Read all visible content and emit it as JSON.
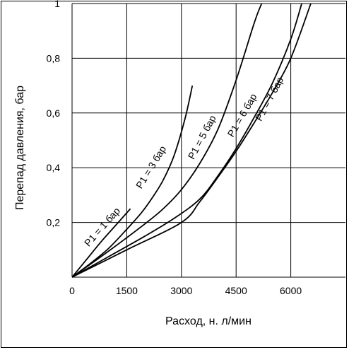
{
  "chart_data": {
    "type": "line",
    "title": "",
    "xlabel": "Расход, н. л/мин",
    "ylabel": "Перепад давления, бар",
    "xlim": [
      0,
      7500
    ],
    "ylim": [
      0,
      1
    ],
    "grid": true,
    "legend": "none",
    "x_ticks": [
      {
        "value": 0,
        "label": "0"
      },
      {
        "value": 1500,
        "label": "1500"
      },
      {
        "value": 3000,
        "label": "3000"
      },
      {
        "value": 4500,
        "label": "4500"
      },
      {
        "value": 6000,
        "label": "6000"
      }
    ],
    "y_ticks": [
      {
        "value": 0.2,
        "label": "0,2"
      },
      {
        "value": 0.4,
        "label": "0,4"
      },
      {
        "value": 0.6,
        "label": "0,6"
      },
      {
        "value": 0.8,
        "label": "0,8"
      },
      {
        "value": 1,
        "label": "1"
      }
    ],
    "series": [
      {
        "name": "P1 = 1 бар",
        "x": [
          0,
          400,
          800,
          1200,
          1600
        ],
        "y": [
          0,
          0.065,
          0.13,
          0.19,
          0.25
        ],
        "label_at": [
          1050,
          0.16
        ]
      },
      {
        "name": "P1 = 3 бар",
        "x": [
          0,
          500,
          1000,
          1500,
          1900,
          2200,
          2500,
          2800,
          3100,
          3300
        ],
        "y": [
          0,
          0.05,
          0.105,
          0.175,
          0.235,
          0.29,
          0.355,
          0.445,
          0.58,
          0.7
        ],
        "label_at": [
          2400,
          0.38
        ]
      },
      {
        "name": "P1 = 5 бар",
        "x": [
          0,
          1000,
          2000,
          2500,
          3000,
          3500,
          4000,
          4500,
          5000,
          5200
        ],
        "y": [
          0,
          0.095,
          0.195,
          0.25,
          0.32,
          0.415,
          0.54,
          0.72,
          0.93,
          1.0
        ],
        "label_at": [
          3800,
          0.49
        ]
      },
      {
        "name": "P1 = 6 бар",
        "x": [
          0,
          1000,
          2000,
          2800,
          3500,
          4000,
          4500,
          5000,
          5500,
          6000,
          6300
        ],
        "y": [
          0,
          0.075,
          0.15,
          0.215,
          0.285,
          0.37,
          0.47,
          0.585,
          0.71,
          0.87,
          1.0
        ],
        "label_at": [
          4900,
          0.57
        ]
      },
      {
        "name": "P1 = 7 бар",
        "x": [
          0,
          1500,
          3000,
          3500,
          4000,
          4500,
          5000,
          5500,
          6000,
          6550
        ],
        "y": [
          0,
          0.1,
          0.2,
          0.275,
          0.365,
          0.46,
          0.565,
          0.675,
          0.8,
          1.0
        ],
        "label_at": [
          5650,
          0.63
        ]
      }
    ]
  }
}
